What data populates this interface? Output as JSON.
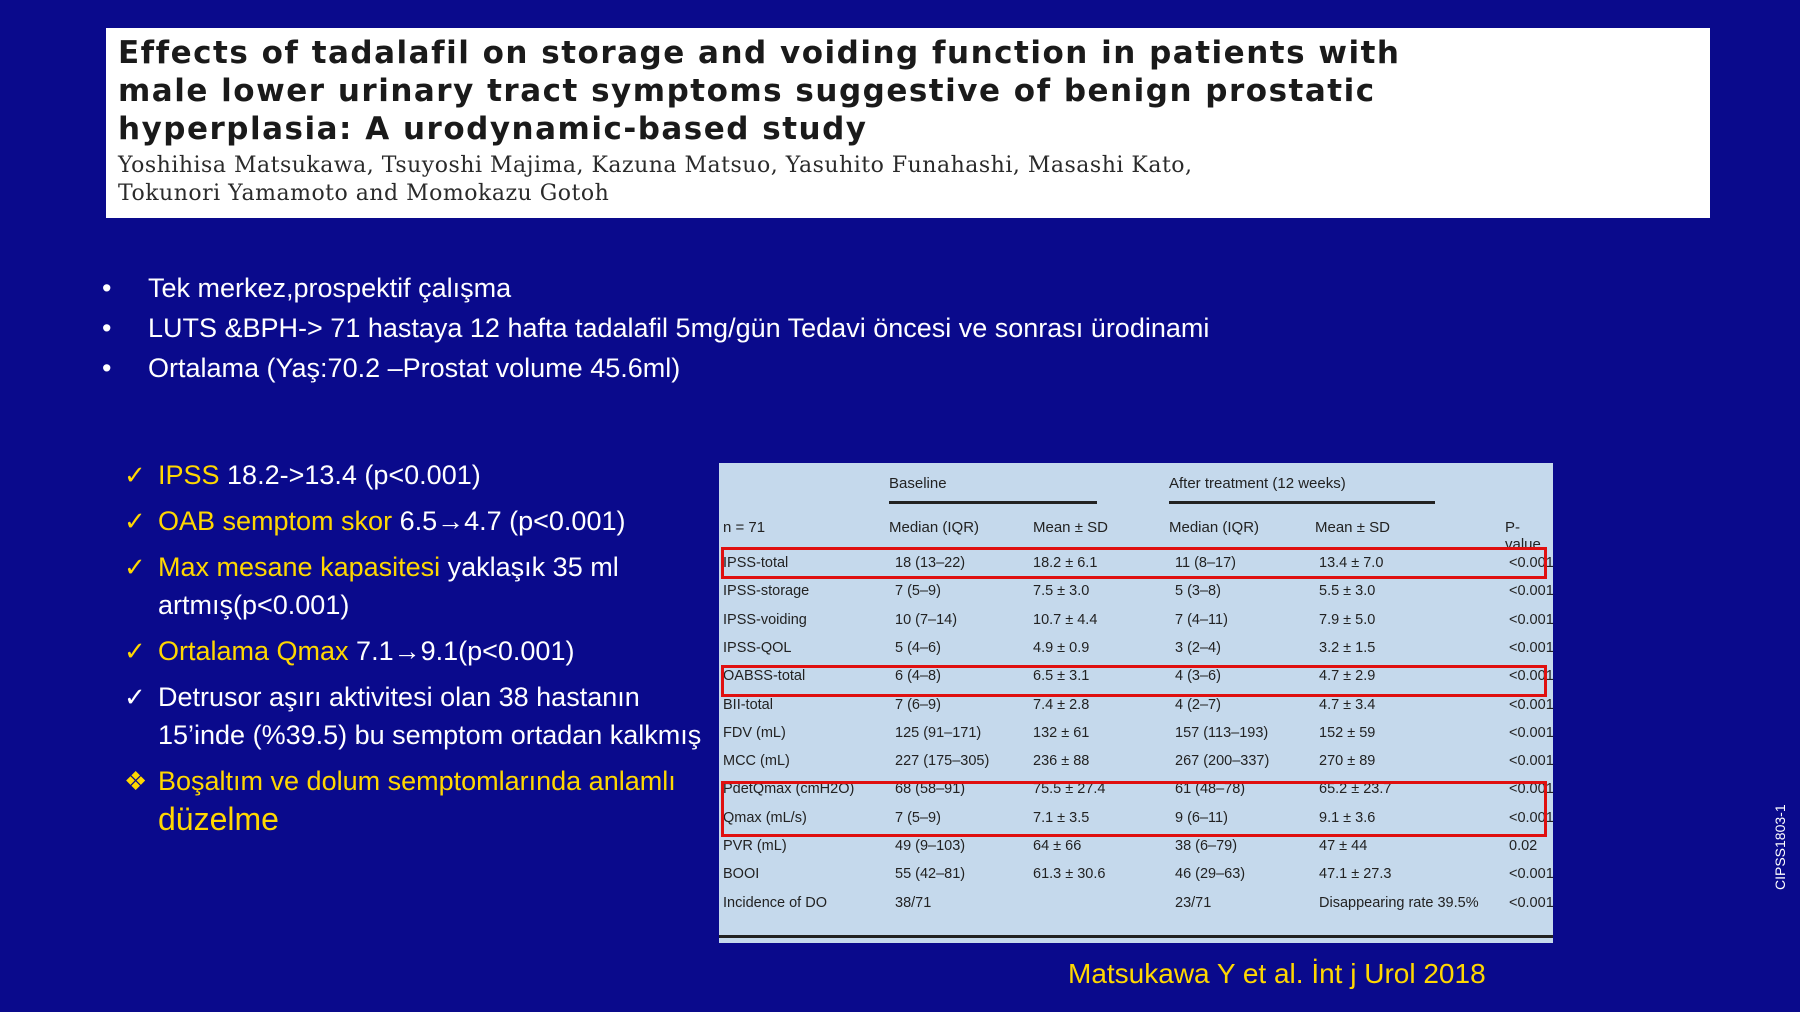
{
  "paper": {
    "title_lines": [
      "Effects of tadalafil on storage and voiding function in patients with",
      "male lower urinary tract symptoms suggestive of benign prostatic",
      "hyperplasia: A urodynamic-based study"
    ],
    "author_lines": [
      "Yoshihisa Matsukawa, Tsuyoshi Majima, Kazuna Matsuo, Yasuhito Funahashi, Masashi Kato,",
      "Tokunori Yamamoto and Momokazu Gotoh"
    ]
  },
  "bullets": [
    "Tek merkez,prospektif çalışma",
    "LUTS &BPH->  71  hastaya 12 hafta  tadalafil 5mg/gün Tedavi öncesi ve sonrası ürodinami",
    "Ortalama (Yaş:70.2 –Prostat volume 45.6ml)"
  ],
  "findings": [
    {
      "mark": "✓",
      "highlight": "IPSS",
      "rest": " 18.2->13.4 (p<0.001)"
    },
    {
      "mark": "✓",
      "highlight": "OAB semptom skor",
      "rest": " 6.5→4.7 (p<0.001)"
    },
    {
      "mark": "✓",
      "highlight": "Max mesane kapasitesi",
      "rest": " yaklaşık 35 ml artmış(p<0.001)"
    },
    {
      "mark": "✓",
      "highlight": "Ortalama Qmax",
      "rest": " 7.1→9.1(p<0.001)"
    },
    {
      "mark": "✓",
      "highlight": "",
      "rest": "Detrusor aşırı aktivitesi olan 38 hastanın 15’inde (%39.5) bu semptom ortadan kalkmış"
    },
    {
      "mark": "❖",
      "highlight": "Boşaltım ve dolum semptomlarında anlamlı ",
      "big": "düzelme",
      "rest": ""
    }
  ],
  "table": {
    "group_baseline": "Baseline",
    "group_after": "After treatment (12 weeks)",
    "headers": [
      "n = 71",
      "Median (IQR)",
      "Mean ± SD",
      "Median (IQR)",
      "Mean ± SD",
      "P-value"
    ],
    "rows": [
      [
        "IPSS-total",
        "18 (13–22)",
        "18.2 ± 6.1",
        "11 (8–17)",
        "13.4 ± 7.0",
        "<0.001"
      ],
      [
        "IPSS-storage",
        "7 (5–9)",
        "7.5 ± 3.0",
        "5 (3–8)",
        "5.5 ± 3.0",
        "<0.001"
      ],
      [
        "IPSS-voiding",
        "10 (7–14)",
        "10.7 ± 4.4",
        "7 (4–11)",
        "7.9 ± 5.0",
        "<0.001"
      ],
      [
        "IPSS-QOL",
        "5 (4–6)",
        "4.9 ± 0.9",
        "3 (2–4)",
        "3.2 ± 1.5",
        "<0.001"
      ],
      [
        "OABSS-total",
        "6 (4–8)",
        "6.5 ± 3.1",
        "4 (3–6)",
        "4.7 ± 2.9",
        "<0.001"
      ],
      [
        "BII-total",
        "7 (6–9)",
        "7.4 ± 2.8",
        "4 (2–7)",
        "4.7 ± 3.4",
        "<0.001"
      ],
      [
        "FDV (mL)",
        "125 (91–171)",
        "132 ± 61",
        "157 (113–193)",
        "152 ± 59",
        "<0.001"
      ],
      [
        "MCC (mL)",
        "227 (175–305)",
        "236 ± 88",
        "267 (200–337)",
        "270 ± 89",
        "<0.001"
      ],
      [
        "PdetQmax (cmH2O)",
        "68 (58–91)",
        "75.5 ± 27.4",
        "61 (48–78)",
        "65.2 ± 23.7",
        "<0.001"
      ],
      [
        "Qmax (mL/s)",
        "7 (5–9)",
        "7.1 ± 3.5",
        "9 (6–11)",
        "9.1 ± 3.6",
        "<0.001"
      ],
      [
        "PVR (mL)",
        "49 (9–103)",
        "64 ± 66",
        "38 (6–79)",
        "47 ± 44",
        "0.02"
      ],
      [
        "BOOI",
        "55 (42–81)",
        "61.3 ± 30.6",
        "46 (29–63)",
        "47.1 ± 27.3",
        "<0.001"
      ],
      [
        "Incidence of DO",
        "38/71",
        "",
        "23/71",
        "Disappearing rate 39.5%",
        "<0.001"
      ]
    ]
  },
  "citation": "Matsukawa  Y et al. İnt j Urol 2018",
  "side_code": "CIPSS1803-1"
}
